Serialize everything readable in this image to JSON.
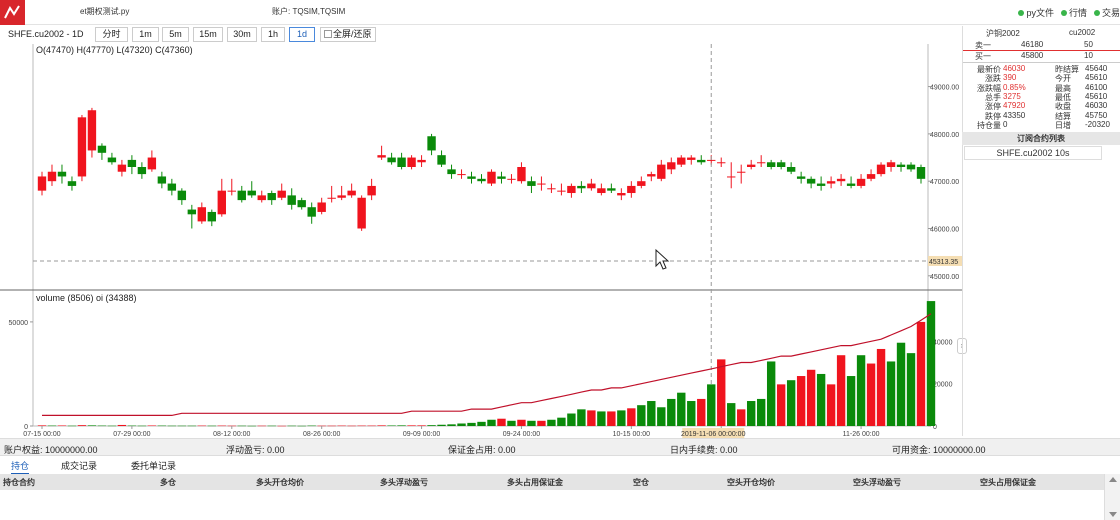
{
  "window": {
    "script_title": "et期权测试.py",
    "account_label": "账户: TQSIM,TQSIM",
    "indicators": [
      "py文件",
      "行情",
      "交易"
    ]
  },
  "toolbar": {
    "symbol": "SHFE.cu2002 - 1D",
    "periods": [
      "分时",
      "1m",
      "5m",
      "15m",
      "30m",
      "1h",
      "1d"
    ],
    "active_period": "1d",
    "fullscreen_label": "全屏/还原"
  },
  "chart_data": {
    "type": "candlestick",
    "ohlc_label": "O(47470) H(47770) L(47320) C(47360)",
    "price_ticks": [
      "49000.00",
      "48000.00",
      "47000.00",
      "46000.00",
      "45000.00"
    ],
    "price_range": [
      44700,
      49900
    ],
    "crosshair_price": "45313.35",
    "crosshair_date": "2019-11-06 00:00:00",
    "x_ticks": [
      "07-15 00:00",
      "07-29 00:00",
      "08-12 00:00",
      "08-26 00:00",
      "09-09 00:00",
      "09-24 00:00",
      "10-15 00:00",
      "10-29 00:00",
      "11-26 00:00"
    ],
    "volume_label": "volume (8506) oi (34388)",
    "volume_ticks_left": [
      "50000",
      "0"
    ],
    "volume_ticks_right": [
      "40000",
      "20000",
      "0"
    ],
    "candles": [
      {
        "o": 46800,
        "c": 47100,
        "h": 47200,
        "l": 46700
      },
      {
        "o": 47000,
        "c": 47200,
        "h": 47350,
        "l": 46900
      },
      {
        "o": 47200,
        "c": 47100,
        "h": 47350,
        "l": 46950
      },
      {
        "o": 47000,
        "c": 46900,
        "h": 47100,
        "l": 46800
      },
      {
        "o": 47100,
        "c": 48350,
        "h": 48400,
        "l": 47000
      },
      {
        "o": 47650,
        "c": 48500,
        "h": 48550,
        "l": 47500
      },
      {
        "o": 47750,
        "c": 47600,
        "h": 47800,
        "l": 47450
      },
      {
        "o": 47500,
        "c": 47400,
        "h": 47600,
        "l": 47350
      },
      {
        "o": 47200,
        "c": 47350,
        "h": 47450,
        "l": 47100
      },
      {
        "o": 47450,
        "c": 47300,
        "h": 47550,
        "l": 47150
      },
      {
        "o": 47300,
        "c": 47150,
        "h": 47400,
        "l": 47050
      },
      {
        "o": 47250,
        "c": 47500,
        "h": 47650,
        "l": 47200
      },
      {
        "o": 47100,
        "c": 46950,
        "h": 47200,
        "l": 46850
      },
      {
        "o": 46950,
        "c": 46800,
        "h": 47050,
        "l": 46700
      },
      {
        "o": 46800,
        "c": 46600,
        "h": 46850,
        "l": 46500
      },
      {
        "o": 46400,
        "c": 46300,
        "h": 46500,
        "l": 46000
      },
      {
        "o": 46150,
        "c": 46450,
        "h": 46550,
        "l": 46100
      },
      {
        "o": 46350,
        "c": 46150,
        "h": 46400,
        "l": 46050
      },
      {
        "o": 46300,
        "c": 46800,
        "h": 47050,
        "l": 46250
      },
      {
        "o": 46800,
        "c": 46800,
        "h": 47050,
        "l": 46700
      },
      {
        "o": 46800,
        "c": 46600,
        "h": 46900,
        "l": 46550
      },
      {
        "o": 46800,
        "c": 46700,
        "h": 47000,
        "l": 46650
      },
      {
        "o": 46600,
        "c": 46700,
        "h": 46800,
        "l": 46550
      },
      {
        "o": 46750,
        "c": 46600,
        "h": 46800,
        "l": 46500
      },
      {
        "o": 46650,
        "c": 46800,
        "h": 46950,
        "l": 46600
      },
      {
        "o": 46700,
        "c": 46500,
        "h": 46850,
        "l": 46400
      },
      {
        "o": 46600,
        "c": 46450,
        "h": 46650,
        "l": 46400
      },
      {
        "o": 46450,
        "c": 46250,
        "h": 46550,
        "l": 46100
      },
      {
        "o": 46350,
        "c": 46550,
        "h": 46650,
        "l": 46300
      },
      {
        "o": 46650,
        "c": 46650,
        "h": 46900,
        "l": 46550
      },
      {
        "o": 46650,
        "c": 46700,
        "h": 46900,
        "l": 46600
      },
      {
        "o": 46700,
        "c": 46800,
        "h": 46950,
        "l": 46650
      },
      {
        "o": 46000,
        "c": 46650,
        "h": 46700,
        "l": 45950
      },
      {
        "o": 46700,
        "c": 46900,
        "h": 47050,
        "l": 46600
      },
      {
        "o": 47500,
        "c": 47550,
        "h": 47750,
        "l": 47450
      },
      {
        "o": 47500,
        "c": 47400,
        "h": 47600,
        "l": 47350
      },
      {
        "o": 47500,
        "c": 47300,
        "h": 47600,
        "l": 47250
      },
      {
        "o": 47300,
        "c": 47500,
        "h": 47550,
        "l": 47250
      },
      {
        "o": 47400,
        "c": 47450,
        "h": 47550,
        "l": 47300
      },
      {
        "o": 47950,
        "c": 47650,
        "h": 48000,
        "l": 47550
      },
      {
        "o": 47550,
        "c": 47350,
        "h": 47650,
        "l": 47300
      },
      {
        "o": 47250,
        "c": 47150,
        "h": 47350,
        "l": 47050
      },
      {
        "o": 47150,
        "c": 47150,
        "h": 47250,
        "l": 47050
      },
      {
        "o": 47100,
        "c": 47050,
        "h": 47200,
        "l": 46950
      },
      {
        "o": 47050,
        "c": 47000,
        "h": 47150,
        "l": 46950
      },
      {
        "o": 46950,
        "c": 47200,
        "h": 47250,
        "l": 46900
      },
      {
        "o": 47100,
        "c": 47050,
        "h": 47200,
        "l": 46950
      },
      {
        "o": 47050,
        "c": 47050,
        "h": 47150,
        "l": 46950
      },
      {
        "o": 47000,
        "c": 47300,
        "h": 47400,
        "l": 46950
      },
      {
        "o": 47000,
        "c": 46900,
        "h": 47100,
        "l": 46750
      },
      {
        "o": 46950,
        "c": 46950,
        "h": 47100,
        "l": 46800
      },
      {
        "o": 46850,
        "c": 46850,
        "h": 46950,
        "l": 46750
      },
      {
        "o": 46800,
        "c": 46800,
        "h": 46950,
        "l": 46700
      },
      {
        "o": 46750,
        "c": 46900,
        "h": 46950,
        "l": 46650
      },
      {
        "o": 46900,
        "c": 46850,
        "h": 47000,
        "l": 46750
      },
      {
        "o": 46850,
        "c": 46950,
        "h": 47050,
        "l": 46800
      },
      {
        "o": 46750,
        "c": 46850,
        "h": 46950,
        "l": 46700
      },
      {
        "o": 46850,
        "c": 46800,
        "h": 46950,
        "l": 46750
      },
      {
        "o": 46700,
        "c": 46750,
        "h": 46850,
        "l": 46600
      },
      {
        "o": 46750,
        "c": 46900,
        "h": 47000,
        "l": 46650
      },
      {
        "o": 46900,
        "c": 47000,
        "h": 47100,
        "l": 46850
      },
      {
        "o": 47100,
        "c": 47150,
        "h": 47200,
        "l": 47000
      },
      {
        "o": 47050,
        "c": 47350,
        "h": 47450,
        "l": 47000
      },
      {
        "o": 47250,
        "c": 47400,
        "h": 47500,
        "l": 47150
      },
      {
        "o": 47350,
        "c": 47500,
        "h": 47550,
        "l": 47300
      },
      {
        "o": 47450,
        "c": 47500,
        "h": 47550,
        "l": 47350
      },
      {
        "o": 47450,
        "c": 47400,
        "h": 47550,
        "l": 47350
      },
      {
        "o": 47450,
        "c": 47450,
        "h": 47550,
        "l": 47350
      },
      {
        "o": 47400,
        "c": 47400,
        "h": 47500,
        "l": 47300
      },
      {
        "o": 47100,
        "c": 47100,
        "h": 47400,
        "l": 46850
      },
      {
        "o": 47200,
        "c": 47200,
        "h": 47350,
        "l": 46950
      },
      {
        "o": 47300,
        "c": 47350,
        "h": 47450,
        "l": 47250
      },
      {
        "o": 47400,
        "c": 47400,
        "h": 47550,
        "l": 47300
      },
      {
        "o": 47400,
        "c": 47300,
        "h": 47450,
        "l": 47250
      },
      {
        "o": 47400,
        "c": 47300,
        "h": 47450,
        "l": 47250
      },
      {
        "o": 47300,
        "c": 47200,
        "h": 47400,
        "l": 47150
      },
      {
        "o": 47100,
        "c": 47050,
        "h": 47200,
        "l": 46950
      },
      {
        "o": 47050,
        "c": 46950,
        "h": 47100,
        "l": 46850
      },
      {
        "o": 46950,
        "c": 46900,
        "h": 47100,
        "l": 46800
      },
      {
        "o": 46950,
        "c": 47000,
        "h": 47100,
        "l": 46850
      },
      {
        "o": 47000,
        "c": 47050,
        "h": 47150,
        "l": 46900
      },
      {
        "o": 46950,
        "c": 46900,
        "h": 47100,
        "l": 46850
      },
      {
        "o": 46900,
        "c": 47050,
        "h": 47150,
        "l": 46850
      },
      {
        "o": 47050,
        "c": 47150,
        "h": 47250,
        "l": 47000
      },
      {
        "o": 47150,
        "c": 47350,
        "h": 47400,
        "l": 47100
      },
      {
        "o": 47300,
        "c": 47400,
        "h": 47450,
        "l": 47200
      },
      {
        "o": 47350,
        "c": 47300,
        "h": 47400,
        "l": 47200
      },
      {
        "o": 47350,
        "c": 47250,
        "h": 47400,
        "l": 47200
      },
      {
        "o": 47300,
        "c": 47050,
        "h": 47350,
        "l": 46950
      }
    ],
    "volumes": [
      {
        "v": 300,
        "up": true
      },
      {
        "v": 200,
        "up": false
      },
      {
        "v": 250,
        "up": true
      },
      {
        "v": 150,
        "up": false
      },
      {
        "v": 400,
        "up": true
      },
      {
        "v": 300,
        "up": false
      },
      {
        "v": 200,
        "up": false
      },
      {
        "v": 150,
        "up": false
      },
      {
        "v": 500,
        "up": true
      },
      {
        "v": 200,
        "up": false
      },
      {
        "v": 150,
        "up": false
      },
      {
        "v": 250,
        "up": true
      },
      {
        "v": 200,
        "up": false
      },
      {
        "v": 150,
        "up": false
      },
      {
        "v": 150,
        "up": false
      },
      {
        "v": 150,
        "up": false
      },
      {
        "v": 200,
        "up": true
      },
      {
        "v": 150,
        "up": false
      },
      {
        "v": 200,
        "up": true
      },
      {
        "v": 150,
        "up": true
      },
      {
        "v": 150,
        "up": false
      },
      {
        "v": 100,
        "up": false
      },
      {
        "v": 150,
        "up": true
      },
      {
        "v": 150,
        "up": false
      },
      {
        "v": 100,
        "up": true
      },
      {
        "v": 150,
        "up": false
      },
      {
        "v": 100,
        "up": false
      },
      {
        "v": 200,
        "up": false
      },
      {
        "v": 150,
        "up": true
      },
      {
        "v": 150,
        "up": true
      },
      {
        "v": 200,
        "up": true
      },
      {
        "v": 150,
        "up": true
      },
      {
        "v": 200,
        "up": true
      },
      {
        "v": 200,
        "up": true
      },
      {
        "v": 300,
        "up": true
      },
      {
        "v": 250,
        "up": false
      },
      {
        "v": 300,
        "up": false
      },
      {
        "v": 300,
        "up": true
      },
      {
        "v": 300,
        "up": true
      },
      {
        "v": 400,
        "up": false
      },
      {
        "v": 600,
        "up": false
      },
      {
        "v": 800,
        "up": false
      },
      {
        "v": 1200,
        "up": false
      },
      {
        "v": 1500,
        "up": false
      },
      {
        "v": 2000,
        "up": false
      },
      {
        "v": 3000,
        "up": false
      },
      {
        "v": 3500,
        "up": true
      },
      {
        "v": 2500,
        "up": false
      },
      {
        "v": 3000,
        "up": true
      },
      {
        "v": 2500,
        "up": false
      },
      {
        "v": 2500,
        "up": true
      },
      {
        "v": 3000,
        "up": false
      },
      {
        "v": 4000,
        "up": false
      },
      {
        "v": 6000,
        "up": false
      },
      {
        "v": 8000,
        "up": false
      },
      {
        "v": 7500,
        "up": true
      },
      {
        "v": 7000,
        "up": false
      },
      {
        "v": 7000,
        "up": true
      },
      {
        "v": 7500,
        "up": false
      },
      {
        "v": 8500,
        "up": true
      },
      {
        "v": 10000,
        "up": false
      },
      {
        "v": 12000,
        "up": false
      },
      {
        "v": 9000,
        "up": false
      },
      {
        "v": 13000,
        "up": false
      },
      {
        "v": 16000,
        "up": false
      },
      {
        "v": 12000,
        "up": false
      },
      {
        "v": 13000,
        "up": true
      },
      {
        "v": 20000,
        "up": false
      },
      {
        "v": 32000,
        "up": true
      },
      {
        "v": 11000,
        "up": false
      },
      {
        "v": 8000,
        "up": true
      },
      {
        "v": 12000,
        "up": false
      },
      {
        "v": 13000,
        "up": false
      },
      {
        "v": 31000,
        "up": false
      },
      {
        "v": 20000,
        "up": true
      },
      {
        "v": 22000,
        "up": false
      },
      {
        "v": 24000,
        "up": true
      },
      {
        "v": 27000,
        "up": true
      },
      {
        "v": 25000,
        "up": false
      },
      {
        "v": 20000,
        "up": true
      },
      {
        "v": 34000,
        "up": true
      },
      {
        "v": 24000,
        "up": false
      },
      {
        "v": 34000,
        "up": false
      },
      {
        "v": 30000,
        "up": true
      },
      {
        "v": 37000,
        "up": true
      },
      {
        "v": 31000,
        "up": false
      },
      {
        "v": 40000,
        "up": false
      },
      {
        "v": 35000,
        "up": false
      },
      {
        "v": 50000,
        "up": true
      },
      {
        "v": 60000,
        "up": false
      }
    ],
    "oi": [
      5,
      5,
      5,
      5,
      5,
      5,
      5,
      5,
      5,
      5,
      5,
      5,
      5,
      5,
      6,
      6,
      6,
      6,
      6,
      6,
      6,
      6,
      6,
      6,
      6,
      6,
      6,
      6,
      6,
      6,
      6,
      6,
      6,
      6,
      6,
      6,
      6,
      7,
      7,
      7,
      7,
      7,
      7,
      8,
      8,
      8,
      9,
      10,
      11,
      11,
      12,
      13,
      14,
      15,
      16,
      17,
      17,
      18,
      18,
      19,
      20,
      21,
      22,
      23,
      24,
      25,
      26,
      27,
      28,
      29,
      30,
      30,
      31,
      32,
      33,
      33,
      34,
      35,
      36,
      37,
      38,
      38,
      39,
      40,
      41,
      43,
      45,
      47,
      50,
      53
    ]
  },
  "quote_panel": {
    "header": {
      "name": "沪铜2002",
      "code": "cu2002"
    },
    "ask": {
      "label": "卖一",
      "price": "46180",
      "volume": "50"
    },
    "bid": {
      "label": "买一",
      "price": "45800",
      "volume": "10"
    },
    "left": [
      {
        "label": "最新价",
        "value": "46030"
      },
      {
        "label": "涨跌",
        "value": "390"
      },
      {
        "label": "涨跌幅",
        "value": "0.85%"
      },
      {
        "label": "总手",
        "value": "3275"
      },
      {
        "label": "涨停",
        "value": "47920"
      },
      {
        "label": "跌停",
        "value": "43350"
      },
      {
        "label": "持仓量",
        "value": "0"
      }
    ],
    "right": [
      {
        "label": "昨结算",
        "value": "45640"
      },
      {
        "label": "今开",
        "value": "45610"
      },
      {
        "label": "最高",
        "value": "46100"
      },
      {
        "label": "最低",
        "value": "45610"
      },
      {
        "label": "收盘",
        "value": "46030"
      },
      {
        "label": "结算",
        "value": "45750"
      },
      {
        "label": "日增",
        "value": "-20320"
      }
    ],
    "subscription_title": "订阅合约列表",
    "subscription_item": "SHFE.cu2002 10s"
  },
  "account_bar": {
    "equity": "账户权益: 10000000.00",
    "float_pnl": "浮动盈亏: 0.00",
    "margin": "保证金占用: 0.00",
    "fee": "日内手续费: 0.00",
    "available": "可用资金: 10000000.00"
  },
  "tabs": [
    "持仓",
    "成交记录",
    "委托单记录"
  ],
  "positions_table": {
    "columns": [
      "持仓合约",
      "多仓",
      "多头开仓均价",
      "多头浮动盈亏",
      "多头占用保证金",
      "空仓",
      "空头开仓均价",
      "空头浮动盈亏",
      "空头占用保证金"
    ]
  },
  "colors": {
    "up": "#f0141e",
    "down": "#0a8a0a",
    "oi_line": "#c0102a",
    "accent": "#1d5fb8"
  }
}
